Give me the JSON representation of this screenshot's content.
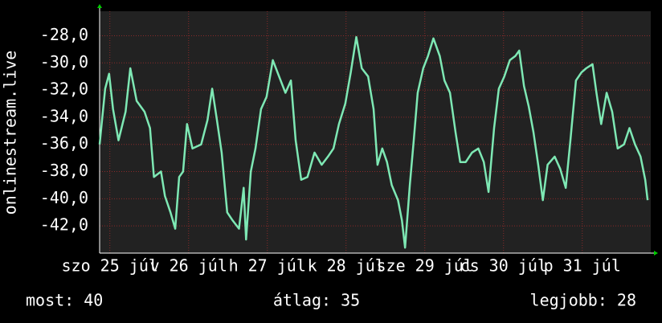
{
  "chart_data": {
    "type": "line",
    "ylabel": "onlinestream.live",
    "xlim": [
      0,
      7
    ],
    "xticks": [
      {
        "value": 0.13,
        "label": "szo 25 júl"
      },
      {
        "value": 1.13,
        "label": "v 26 júl"
      },
      {
        "value": 2.13,
        "label": "h 27 júl"
      },
      {
        "value": 3.13,
        "label": "k 28 júl"
      },
      {
        "value": 4.13,
        "label": "sze 29 júl"
      },
      {
        "value": 5.13,
        "label": "cs 30 júl"
      },
      {
        "value": 6.13,
        "label": "p 31 júl"
      }
    ],
    "ylim": [
      -44,
      -26.2
    ],
    "yticks": [
      {
        "value": -42,
        "label": "-42,0"
      },
      {
        "value": -40,
        "label": "-40,0"
      },
      {
        "value": -38,
        "label": "-38,0"
      },
      {
        "value": -36,
        "label": "-36,0"
      },
      {
        "value": -34,
        "label": "-34,0"
      },
      {
        "value": -32,
        "label": "-32,0"
      },
      {
        "value": -30,
        "label": "-30,0"
      },
      {
        "value": -28,
        "label": "-28,0"
      }
    ],
    "grid": true,
    "series": [
      {
        "color": "#7ee8b4",
        "x": [
          0,
          0.07,
          0.12,
          0.17,
          0.24,
          0.33,
          0.39,
          0.47,
          0.57,
          0.64,
          0.69,
          0.78,
          0.83,
          0.9,
          0.96,
          1.01,
          1.06,
          1.11,
          1.18,
          1.29,
          1.37,
          1.43,
          1.49,
          1.55,
          1.62,
          1.69,
          1.77,
          1.83,
          1.86,
          1.92,
          1.98,
          2.05,
          2.12,
          2.2,
          2.28,
          2.36,
          2.43,
          2.49,
          2.56,
          2.64,
          2.73,
          2.82,
          2.9,
          2.97,
          3.04,
          3.12,
          3.19,
          3.26,
          3.33,
          3.41,
          3.48,
          3.53,
          3.59,
          3.65,
          3.71,
          3.79,
          3.84,
          3.88,
          3.94,
          3.99,
          4.04,
          4.11,
          4.17,
          4.24,
          4.32,
          4.38,
          4.45,
          4.52,
          4.58,
          4.65,
          4.73,
          4.81,
          4.88,
          4.94,
          5.01,
          5.07,
          5.14,
          5.21,
          5.28,
          5.33,
          5.39,
          5.45,
          5.51,
          5.57,
          5.63,
          5.69,
          5.78,
          5.85,
          5.92,
          5.98,
          6.05,
          6.12,
          6.18,
          6.26,
          6.31,
          6.37,
          6.44,
          6.51,
          6.58,
          6.66,
          6.73,
          6.8,
          6.87,
          6.93,
          6.96
        ],
        "values": [
          -36,
          -31.9,
          -30.8,
          -33.4,
          -35.7,
          -33.6,
          -30.4,
          -32.8,
          -33.6,
          -34.8,
          -38.4,
          -38,
          -39.8,
          -41,
          -42.2,
          -38.4,
          -38,
          -34.5,
          -36.3,
          -36,
          -34.2,
          -31.9,
          -34.2,
          -36.6,
          -41,
          -41.6,
          -42.2,
          -39.2,
          -43,
          -38,
          -36.3,
          -33.4,
          -32.5,
          -29.8,
          -31,
          -32.2,
          -31.3,
          -35.7,
          -38.6,
          -38.4,
          -36.6,
          -37.5,
          -36.9,
          -36.3,
          -34.5,
          -33,
          -30.7,
          -28.1,
          -30.4,
          -31,
          -33.4,
          -37.5,
          -36.3,
          -37.3,
          -39,
          -40.1,
          -41.6,
          -43.6,
          -39,
          -35.7,
          -32.2,
          -30.4,
          -29.5,
          -28.2,
          -29.5,
          -31.3,
          -32.2,
          -35.1,
          -37.3,
          -37.3,
          -36.6,
          -36.3,
          -37.3,
          -39.5,
          -34.8,
          -31.9,
          -31,
          -29.8,
          -29.5,
          -29.1,
          -31.7,
          -33.2,
          -35.1,
          -37.5,
          -40.1,
          -37.5,
          -36.9,
          -37.8,
          -39.2,
          -35.7,
          -31.3,
          -30.7,
          -30.4,
          -30.1,
          -32.2,
          -34.5,
          -32.2,
          -33.6,
          -36.3,
          -36,
          -34.8,
          -36,
          -36.9,
          -38.6,
          -40.1
        ]
      }
    ],
    "legend": [
      "most: 40",
      "átlag: 35",
      "legjobb: 28"
    ]
  }
}
